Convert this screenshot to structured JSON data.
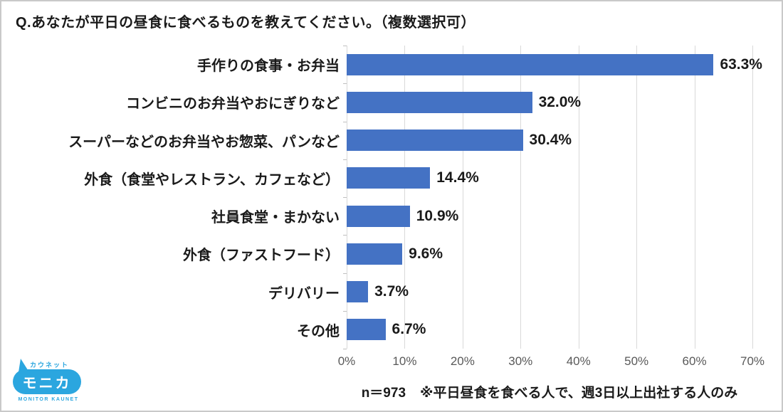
{
  "title": "Q.あなたが平日の昼食に食べるものを教えてください。（複数選択可）",
  "chart_data": {
    "type": "bar",
    "orientation": "horizontal",
    "title": "Q.あなたが平日の昼食に食べるものを教えてください。（複数選択可）",
    "categories": [
      "手作りの食事・お弁当",
      "コンビニのお弁当やおにぎりなど",
      "スーパーなどのお弁当やお惣菜、パンなど",
      "外食（食堂やレストラン、カフェなど）",
      "社員食堂・まかない",
      "外食（ファストフード）",
      "デリバリー",
      "その他"
    ],
    "values": [
      63.3,
      32.0,
      30.4,
      14.4,
      10.9,
      9.6,
      3.7,
      6.7
    ],
    "value_labels": [
      "63.3%",
      "32.0%",
      "30.4%",
      "14.4%",
      "10.9%",
      "9.6%",
      "3.7%",
      "6.7%"
    ],
    "xlabel": "",
    "ylabel": "",
    "xlim": [
      0,
      70
    ],
    "tick_step": 10,
    "tick_labels": [
      "0%",
      "10%",
      "20%",
      "30%",
      "40%",
      "50%",
      "60%",
      "70%"
    ],
    "grid": true,
    "legend": false,
    "bar_color": "#4472c4",
    "gridline_color": "#d9d9d9"
  },
  "footer": {
    "sample": "n＝973",
    "note": "※平日昼食を食べる人で、週3日以上出社する人のみ"
  },
  "logo": {
    "top": "カウネット",
    "main": "モニカ",
    "bottom": "MONITOR KAUNET",
    "color": "#2ba6df"
  }
}
